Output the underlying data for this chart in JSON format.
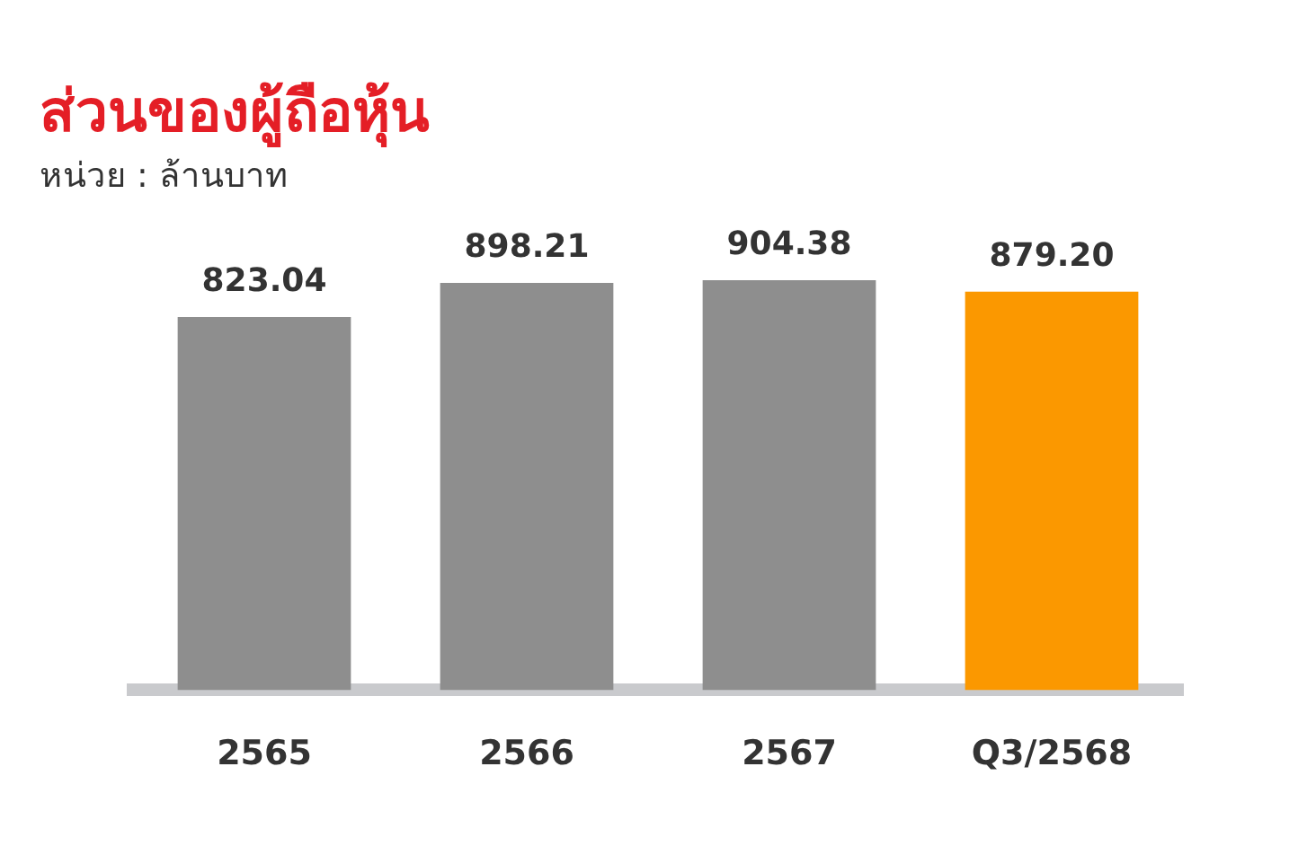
{
  "chart_data": {
    "type": "bar",
    "title": "ส่วนของผู้ถือหุ้น",
    "subtitle": "หน่วย : ล้านบาท",
    "categories": [
      "2565",
      "2566",
      "2567",
      "Q3/2568"
    ],
    "values": [
      823.04,
      898.21,
      904.38,
      879.2
    ],
    "value_labels": [
      "823.04",
      "898.21",
      "904.38",
      "879.20"
    ],
    "colors": [
      "#8e8e8e",
      "#8e8e8e",
      "#8e8e8e",
      "#fb9800"
    ],
    "tick_labels": "x"
  }
}
